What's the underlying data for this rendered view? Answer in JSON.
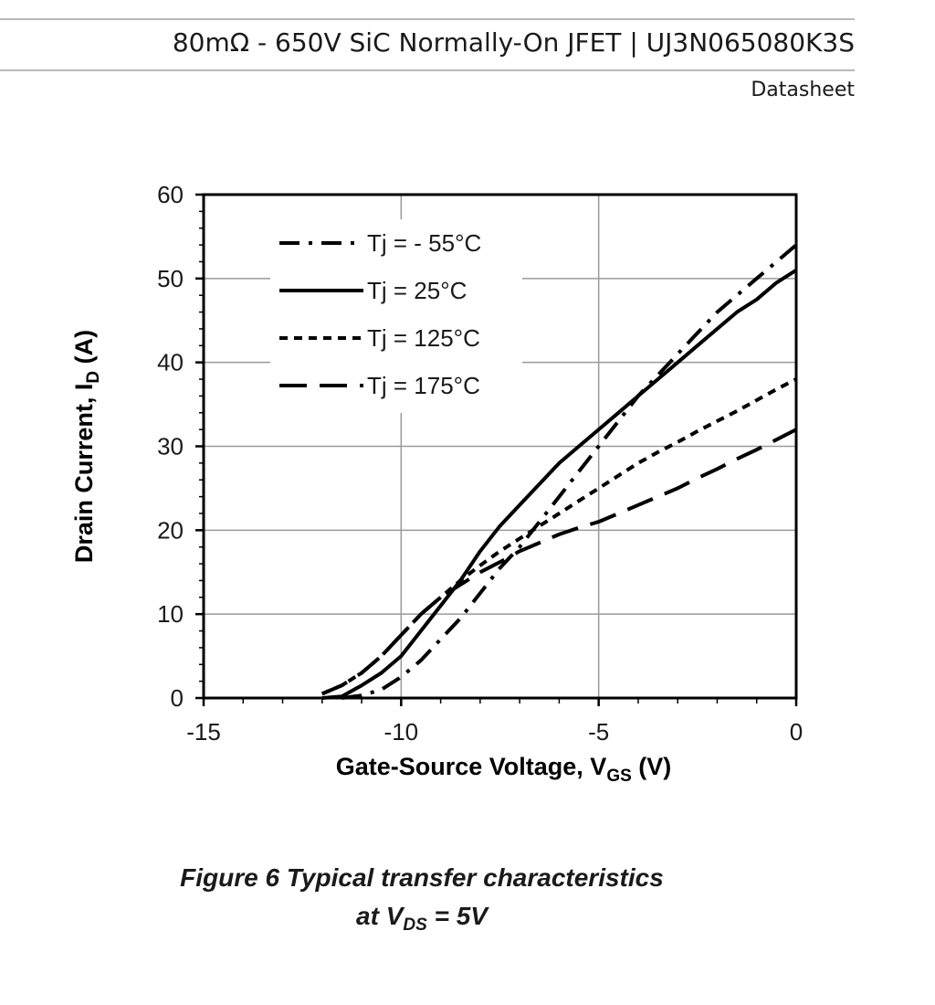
{
  "header": {
    "title": "80mΩ - 650V SiC Normally-On JFET  |  UJ3N065080K3S",
    "subtitle": "Datasheet"
  },
  "chart_data": {
    "type": "line",
    "xlabel": {
      "main": "Gate-Source Voltage, V",
      "sub": "GS",
      "unit": " (V)"
    },
    "ylabel": {
      "main": "Drain Current, I",
      "sub": "D",
      "unit": " (A)"
    },
    "xlim": [
      -15,
      0
    ],
    "ylim": [
      0,
      60
    ],
    "x_ticks": [
      -15,
      -10,
      -5,
      0
    ],
    "x_tick_labels": [
      "-15",
      "-10",
      "-5",
      "0"
    ],
    "y_ticks": [
      0,
      10,
      20,
      30,
      40,
      50,
      60
    ],
    "y_tick_labels": [
      "0",
      "10",
      "20",
      "30",
      "40",
      "50",
      "60"
    ],
    "grid": true,
    "legend_position": "top-left",
    "series": [
      {
        "name": "Tj = - 55°C",
        "dash": "dashdot",
        "points": [
          [
            -11.5,
            0
          ],
          [
            -11,
            0.3
          ],
          [
            -10.5,
            1
          ],
          [
            -10,
            2.5
          ],
          [
            -9.5,
            4.5
          ],
          [
            -9,
            7
          ],
          [
            -8.5,
            9.5
          ],
          [
            -8,
            12.5
          ],
          [
            -7.5,
            15.5
          ],
          [
            -7,
            18
          ],
          [
            -6.5,
            21
          ],
          [
            -6,
            24
          ],
          [
            -5.5,
            27
          ],
          [
            -5,
            30
          ],
          [
            -4.5,
            33
          ],
          [
            -4,
            36
          ],
          [
            -3.5,
            38.5
          ],
          [
            -3,
            41
          ],
          [
            -2.5,
            43.5
          ],
          [
            -2,
            46
          ],
          [
            -1.5,
            48
          ],
          [
            -1,
            50
          ],
          [
            -0.5,
            52
          ],
          [
            0,
            54
          ]
        ]
      },
      {
        "name": "Tj = 25°C",
        "dash": "solid",
        "points": [
          [
            -12,
            0
          ],
          [
            -11.5,
            0.2
          ],
          [
            -11,
            1.5
          ],
          [
            -10.5,
            3
          ],
          [
            -10,
            5
          ],
          [
            -9.5,
            8
          ],
          [
            -9,
            11
          ],
          [
            -8.5,
            14
          ],
          [
            -8,
            17.5
          ],
          [
            -7.5,
            20.5
          ],
          [
            -7,
            23
          ],
          [
            -6.5,
            25.5
          ],
          [
            -6,
            28
          ],
          [
            -5.5,
            30
          ],
          [
            -5,
            32
          ],
          [
            -4.5,
            34
          ],
          [
            -4,
            36
          ],
          [
            -3.5,
            38
          ],
          [
            -3,
            40
          ],
          [
            -2.5,
            42
          ],
          [
            -2,
            44
          ],
          [
            -1.5,
            46
          ],
          [
            -1,
            47.5
          ],
          [
            -0.5,
            49.5
          ],
          [
            0,
            51
          ]
        ]
      },
      {
        "name": "Tj = 125°C",
        "dash": "shortdash",
        "points": [
          [
            -12,
            0.5
          ],
          [
            -11.5,
            1.5
          ],
          [
            -11,
            3
          ],
          [
            -10.5,
            5
          ],
          [
            -10,
            7.5
          ],
          [
            -9.5,
            10
          ],
          [
            -9,
            12
          ],
          [
            -8.5,
            14
          ],
          [
            -8,
            15.8
          ],
          [
            -7.5,
            17.5
          ],
          [
            -7,
            19
          ],
          [
            -6.5,
            20.5
          ],
          [
            -6,
            22
          ],
          [
            -5.5,
            23.5
          ],
          [
            -5,
            25
          ],
          [
            -4.5,
            26.5
          ],
          [
            -4,
            28
          ],
          [
            -3.5,
            29.3
          ],
          [
            -3,
            30.5
          ],
          [
            -2.5,
            31.8
          ],
          [
            -2,
            33
          ],
          [
            -1.5,
            34.2
          ],
          [
            -1,
            35.5
          ],
          [
            -0.5,
            36.8
          ],
          [
            0,
            38
          ]
        ]
      },
      {
        "name": "Tj = 175°C",
        "dash": "longdash",
        "points": [
          [
            -12,
            0.5
          ],
          [
            -11.5,
            1.5
          ],
          [
            -11,
            3
          ],
          [
            -10.5,
            5
          ],
          [
            -10,
            7.5
          ],
          [
            -9.5,
            10
          ],
          [
            -9,
            12
          ],
          [
            -8.5,
            13.5
          ],
          [
            -8,
            15
          ],
          [
            -7.5,
            16.2
          ],
          [
            -7,
            17.5
          ],
          [
            -6.5,
            18.5
          ],
          [
            -6,
            19.5
          ],
          [
            -5.5,
            20.3
          ],
          [
            -5,
            21
          ],
          [
            -4.5,
            22
          ],
          [
            -4,
            23
          ],
          [
            -3.5,
            24
          ],
          [
            -3,
            25
          ],
          [
            -2.5,
            26.2
          ],
          [
            -2,
            27.3
          ],
          [
            -1.5,
            28.5
          ],
          [
            -1,
            29.6
          ],
          [
            -0.5,
            30.8
          ],
          [
            0,
            32
          ]
        ]
      }
    ],
    "caption": {
      "line1": "Figure 6 Typical transfer characteristics",
      "line2_pre": "at V",
      "line2_sub": "DS",
      "line2_post": " = 5V"
    }
  }
}
